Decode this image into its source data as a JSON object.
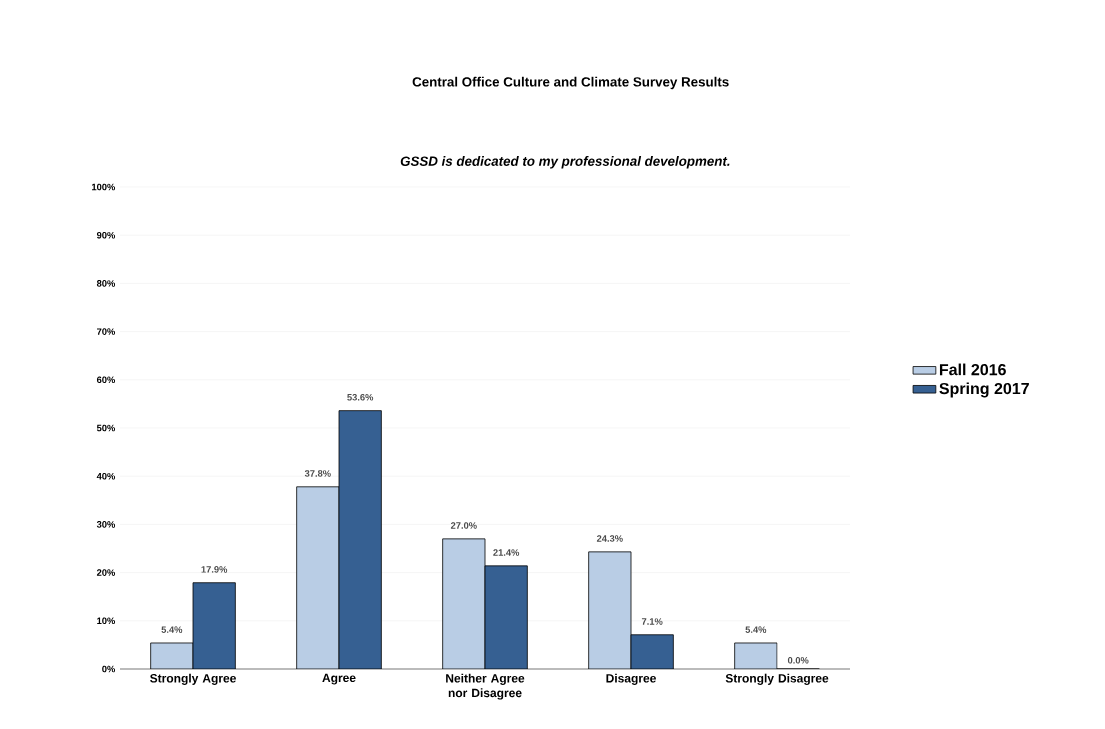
{
  "chart_data": {
    "type": "bar",
    "title": "Central Office Culture and Climate Survey Results",
    "subtitle": "GSSD is dedicated to my professional development.",
    "categories": [
      "Strongly Agree",
      "Agree",
      "Neither Agree nor Disagree",
      "Disagree",
      "Strongly Disagree"
    ],
    "series": [
      {
        "name": "Fall 2016",
        "color": "#b9cde5",
        "values": [
          5.4,
          37.8,
          27.0,
          24.3,
          5.4
        ],
        "value_labels": [
          "5.4%",
          "37.8%",
          "27.0%",
          "24.3%",
          "5.4%"
        ]
      },
      {
        "name": "Spring 2017",
        "color": "#366092",
        "values": [
          17.9,
          53.6,
          21.4,
          7.1,
          0.0
        ],
        "value_labels": [
          "17.9%",
          "53.6%",
          "21.4%",
          "7.1%",
          "0.0%"
        ]
      }
    ],
    "ylim": [
      0,
      100
    ],
    "yticks": [
      {
        "value": 0,
        "label": "0%"
      },
      {
        "value": 10,
        "label": "10%"
      },
      {
        "value": 20,
        "label": "20%"
      },
      {
        "value": 30,
        "label": "30%"
      },
      {
        "value": 40,
        "label": "40%"
      },
      {
        "value": 50,
        "label": "50%"
      },
      {
        "value": 60,
        "label": "60%"
      },
      {
        "value": 70,
        "label": "70%"
      },
      {
        "value": 80,
        "label": "80%"
      },
      {
        "value": 90,
        "label": "90%"
      },
      {
        "value": 100,
        "label": "100%"
      }
    ],
    "grid": "y",
    "legend": "right"
  }
}
